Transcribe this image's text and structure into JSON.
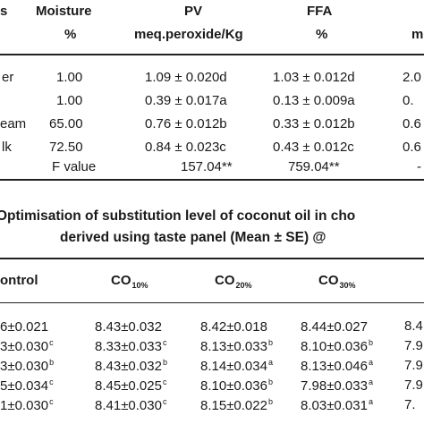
{
  "table1": {
    "headers": {
      "col0_top": "s",
      "moisture_top": "Moisture",
      "moisture_unit": "%",
      "pv_top": "PV",
      "pv_unit": "meq.peroxide/Kg",
      "ffa_top": "FFA",
      "ffa_unit": "%",
      "col5_top": "",
      "col5_unit": "m"
    },
    "rows": [
      {
        "label": "er",
        "moisture": "1.00",
        "pv": "1.09 ± 0.020d",
        "ffa": "1.03 ± 0.012d",
        "extra": "2.0"
      },
      {
        "label": "",
        "moisture": "1.00",
        "pv": "0.39 ± 0.017a",
        "ffa": "0.13 ± 0.009a",
        "extra": "0."
      },
      {
        "label": "eam",
        "moisture": "65.00",
        "pv": "0.76 ± 0.012b",
        "ffa": "0.33 ± 0.012b",
        "extra": "0.6"
      },
      {
        "label": "lk",
        "moisture": "72.50",
        "pv": "0.84 ± 0.023c",
        "ffa": "0.43 ± 0.012c",
        "extra": "0.6"
      },
      {
        "label": "",
        "moisture": "F value",
        "pv": "157.04**",
        "ffa": "759.04**",
        "extra": ""
      }
    ]
  },
  "caption": {
    "line1": "Optimisation of substitution level of coconut oil in cho",
    "line2": "derived using taste panel (Mean ± SE) @"
  },
  "table2": {
    "headers": {
      "control": "ontrol",
      "co": "CO",
      "co10_sub": "10%",
      "co20_sub": "20%",
      "co30_sub": "30%"
    },
    "rows": [
      {
        "c0": "6±0.021",
        "c0_sup": "",
        "c1": "8.43±0.032",
        "c1_sup": "",
        "c2": "8.42±0.018",
        "c2_sup": "",
        "c3": "8.44±0.027",
        "c3_sup": "",
        "c4": "8.4"
      },
      {
        "c0": "3±0.030",
        "c0_sup": "c",
        "c1": "8.33±0.033",
        "c1_sup": "c",
        "c2": "8.13±0.033",
        "c2_sup": "b",
        "c3": "8.10±0.036",
        "c3_sup": "b",
        "c4": "7.9"
      },
      {
        "c0": "3±0.030",
        "c0_sup": "b",
        "c1": "8.43±0.032",
        "c1_sup": "b",
        "c2": "8.14±0.034",
        "c2_sup": "a",
        "c3": "8.13±0.046",
        "c3_sup": "a",
        "c4": "7.9"
      },
      {
        "c0": "5±0.034",
        "c0_sup": "c",
        "c1": "8.45±0.025",
        "c1_sup": "c",
        "c2": "8.10±0.036",
        "c2_sup": "b",
        "c3": "7.98±0.033",
        "c3_sup": "a",
        "c4": "7.9"
      },
      {
        "c0": "1±0.030",
        "c0_sup": "c",
        "c1": "8.41±0.030",
        "c1_sup": "c",
        "c2": "8.15±0.022",
        "c2_sup": "b",
        "c3": "8.03±0.031",
        "c3_sup": "a",
        "c4": "7."
      }
    ]
  }
}
